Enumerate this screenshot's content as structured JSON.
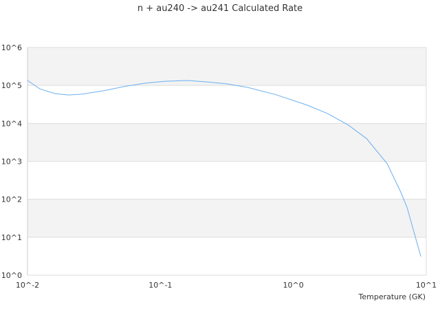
{
  "chart_data": {
    "type": "line",
    "title": "n + au240 -> au241 Calculated Rate",
    "xlabel": "Temperature (GK)",
    "ylabel": "",
    "xscale": "log",
    "yscale": "log",
    "xlim": [
      0.01,
      10
    ],
    "ylim": [
      1,
      1000000
    ],
    "x_ticks": [
      {
        "value": 0.01,
        "label": "10^-2"
      },
      {
        "value": 0.1,
        "label": "10^-1"
      },
      {
        "value": 1,
        "label": "10^0"
      },
      {
        "value": 10,
        "label": "10^1"
      }
    ],
    "y_ticks": [
      {
        "value": 1,
        "label": "10^0"
      },
      {
        "value": 10,
        "label": "10^1"
      },
      {
        "value": 100,
        "label": "10^2"
      },
      {
        "value": 1000,
        "label": "10^3"
      },
      {
        "value": 10000,
        "label": "10^4"
      },
      {
        "value": 100000,
        "label": "10^5"
      },
      {
        "value": 1000000,
        "label": "10^6"
      }
    ],
    "grid": true,
    "alternating_bands": true,
    "legend": "none",
    "colors": {
      "line": "#6aaef0",
      "band": "#f3f3f3",
      "grid": "#dddddd",
      "axis": "#cccccc"
    },
    "series": [
      {
        "x": [
          0.01,
          0.0124,
          0.0161,
          0.0204,
          0.0259,
          0.0371,
          0.053,
          0.0757,
          0.108,
          0.16,
          0.221,
          0.316,
          0.452,
          0.728,
          1.28,
          1.82,
          2.61,
          3.55,
          5.08,
          6.46,
          7.18,
          9.1
        ],
        "y": [
          135000,
          81000,
          61000,
          56000,
          59000,
          72000,
          93000,
          114000,
          129000,
          135000,
          124000,
          110000,
          89000,
          58000,
          30000,
          18000,
          8900,
          4000,
          870,
          150,
          60,
          3.1
        ]
      }
    ]
  }
}
